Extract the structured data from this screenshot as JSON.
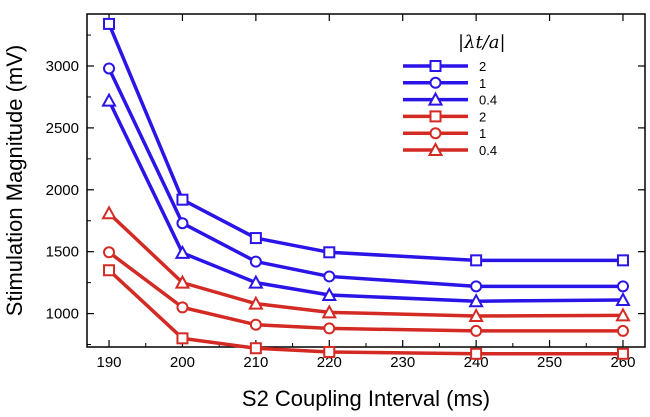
{
  "chart_data": {
    "type": "line",
    "xlabel": "S2 Coupling Interval (ms)",
    "ylabel": "Stimulation Magnitude (mV)",
    "xlim": [
      187,
      263
    ],
    "ylim": [
      730,
      3420
    ],
    "xticks": [
      190,
      200,
      210,
      220,
      230,
      240,
      250,
      260
    ],
    "yticks": [
      1000,
      1500,
      2000,
      2500,
      3000
    ],
    "legend_title": "|λt/a|",
    "legend_position": "top-right",
    "x": [
      190,
      200,
      210,
      220,
      240,
      260
    ],
    "series": [
      {
        "name": "2",
        "color": "#2b14e8",
        "marker": "square",
        "values": [
          3340,
          1920,
          1610,
          1495,
          1430,
          1430
        ]
      },
      {
        "name": "1",
        "color": "#2b14e8",
        "marker": "circle",
        "values": [
          2980,
          1730,
          1420,
          1300,
          1220,
          1220
        ]
      },
      {
        "name": "0.4",
        "color": "#2b14e8",
        "marker": "triangle",
        "values": [
          2720,
          1490,
          1250,
          1150,
          1100,
          1110
        ]
      },
      {
        "name": "2",
        "color": "#d42a24",
        "marker": "square",
        "values": [
          1350,
          800,
          720,
          690,
          675,
          675
        ]
      },
      {
        "name": "1",
        "color": "#d42a24",
        "marker": "circle",
        "values": [
          1495,
          1050,
          910,
          880,
          860,
          860
        ]
      },
      {
        "name": "0.4",
        "color": "#d42a24",
        "marker": "triangle",
        "values": [
          1810,
          1250,
          1080,
          1010,
          980,
          985
        ]
      }
    ]
  }
}
